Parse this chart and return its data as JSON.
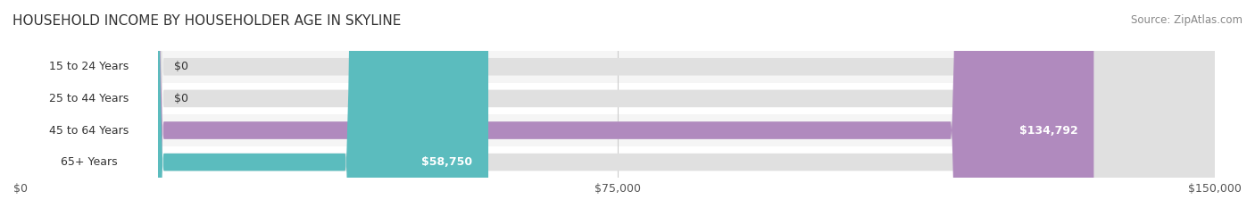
{
  "title": "HOUSEHOLD INCOME BY HOUSEHOLDER AGE IN SKYLINE",
  "source": "Source: ZipAtlas.com",
  "categories": [
    "15 to 24 Years",
    "25 to 44 Years",
    "45 to 64 Years",
    "65+ Years"
  ],
  "values": [
    0,
    0,
    134792,
    58750
  ],
  "labels": [
    "$0",
    "$0",
    "$134,792",
    "$58,750"
  ],
  "bar_colors": [
    "#f4a0a8",
    "#a8c8e8",
    "#b08abe",
    "#5bbcbe"
  ],
  "bar_bg_color": "#efefef",
  "title_fontsize": 11,
  "source_fontsize": 8.5,
  "label_fontsize": 9,
  "tick_fontsize": 9,
  "xlim": [
    0,
    150000
  ],
  "xticks": [
    0,
    75000,
    150000
  ],
  "xticklabels": [
    "$0",
    "$75,000",
    "$150,000"
  ],
  "background_color": "#ffffff",
  "bar_height": 0.55,
  "row_bg_colors": [
    "#f9f9f9",
    "#f9f9f9",
    "#f0f0f0",
    "#f9f9f9"
  ]
}
